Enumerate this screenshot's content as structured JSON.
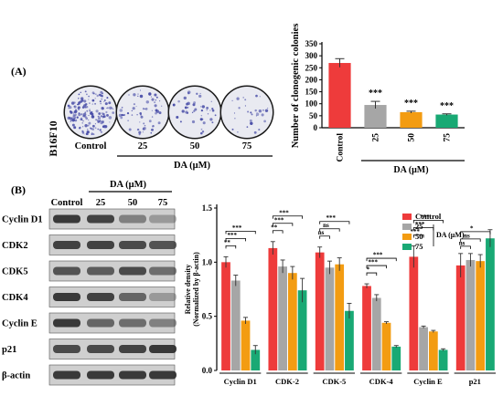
{
  "panel_a": {
    "label": "(A)",
    "cell_line": "B16F10",
    "dish_labels": [
      "Control",
      "25",
      "50",
      "75"
    ],
    "dish_treatment": "DA (μM)"
  },
  "panel_b": {
    "label": "(B)",
    "lane_labels": [
      "Control",
      "25",
      "50",
      "75"
    ],
    "lane_treatment": "DA (μM)",
    "blot_rows": [
      "Cyclin D1",
      "CDK2",
      "CDK5",
      "CDK4",
      "Cyclin E",
      "p21",
      "β-actin"
    ]
  },
  "colors": {
    "Control": "#ee3b3b",
    "25": "#a6a6a6",
    "50": "#f39c12",
    "75": "#19a974",
    "dish_stain": "#4a4fa8"
  },
  "chart_data": [
    {
      "type": "bar",
      "categories": [
        "Control",
        "25",
        "50",
        "75"
      ],
      "values": [
        270,
        95,
        65,
        55
      ],
      "errors": [
        18,
        15,
        4,
        3
      ],
      "ylabel": "Number of clonogenic colonies",
      "xlabel": "DA (μM)",
      "ylim": [
        0,
        350
      ],
      "yticks": [
        0,
        50,
        100,
        150,
        200,
        250,
        300,
        350
      ],
      "significance": [
        "",
        "***",
        "***",
        "***"
      ],
      "colors": [
        "#ee3b3b",
        "#a6a6a6",
        "#f39c12",
        "#19a974"
      ]
    },
    {
      "type": "bar",
      "ylabel": "Relative density",
      "ylabel2": "(Normalized by β-actin)",
      "ylim": [
        0,
        1.5
      ],
      "yticks": [
        "0.0",
        "0.5",
        "1.0",
        "1.5"
      ],
      "legend_position": "top-right",
      "legend_title": "DA (μM)",
      "categories": [
        "Cyclin D1",
        "CDK-2",
        "CDK-5",
        "CDK-4",
        "Cyclin E",
        "p21"
      ],
      "series": [
        {
          "name": "Control",
          "values": [
            1.0,
            1.13,
            1.09,
            0.78,
            1.05,
            0.97
          ],
          "errors": [
            0.05,
            0.06,
            0.05,
            0.02,
            0.1,
            0.11
          ]
        },
        {
          "name": "25",
          "values": [
            0.83,
            0.96,
            0.95,
            0.67,
            0.4,
            1.02
          ],
          "errors": [
            0.05,
            0.06,
            0.06,
            0.03,
            0.01,
            0.06
          ]
        },
        {
          "name": "50",
          "values": [
            0.46,
            0.9,
            0.98,
            0.44,
            0.36,
            1.01
          ],
          "errors": [
            0.03,
            0.06,
            0.06,
            0.01,
            0.01,
            0.06
          ]
        },
        {
          "name": "75",
          "values": [
            0.19,
            0.74,
            0.55,
            0.22,
            0.19,
            1.22
          ],
          "errors": [
            0.04,
            0.11,
            0.07,
            0.01,
            0.01,
            0.08
          ]
        }
      ],
      "significance": [
        {
          "category": "Cyclin D1",
          "pairs": [
            [
              "Control",
              "25",
              "**"
            ],
            [
              "Control",
              "50",
              "***"
            ],
            [
              "Control",
              "75",
              "***"
            ]
          ]
        },
        {
          "category": "CDK-2",
          "pairs": [
            [
              "Control",
              "25",
              "**"
            ],
            [
              "Control",
              "50",
              "***"
            ],
            [
              "Control",
              "75",
              "***"
            ]
          ]
        },
        {
          "category": "CDK-5",
          "pairs": [
            [
              "Control",
              "25",
              "ns"
            ],
            [
              "Control",
              "50",
              "ns"
            ],
            [
              "Control",
              "75",
              "***"
            ]
          ]
        },
        {
          "category": "CDK-4",
          "pairs": [
            [
              "Control",
              "25",
              "*"
            ],
            [
              "Control",
              "50",
              "***"
            ],
            [
              "Control",
              "75",
              "***"
            ]
          ]
        },
        {
          "category": "Cyclin E",
          "pairs": [
            [
              "Control",
              "25",
              "***"
            ],
            [
              "Control",
              "50",
              "***"
            ],
            [
              "Control",
              "75",
              "***"
            ]
          ]
        },
        {
          "category": "p21",
          "pairs": [
            [
              "Control",
              "25",
              "ns"
            ],
            [
              "Control",
              "50",
              "ns"
            ],
            [
              "Control",
              "75",
              "*"
            ]
          ]
        }
      ]
    }
  ]
}
